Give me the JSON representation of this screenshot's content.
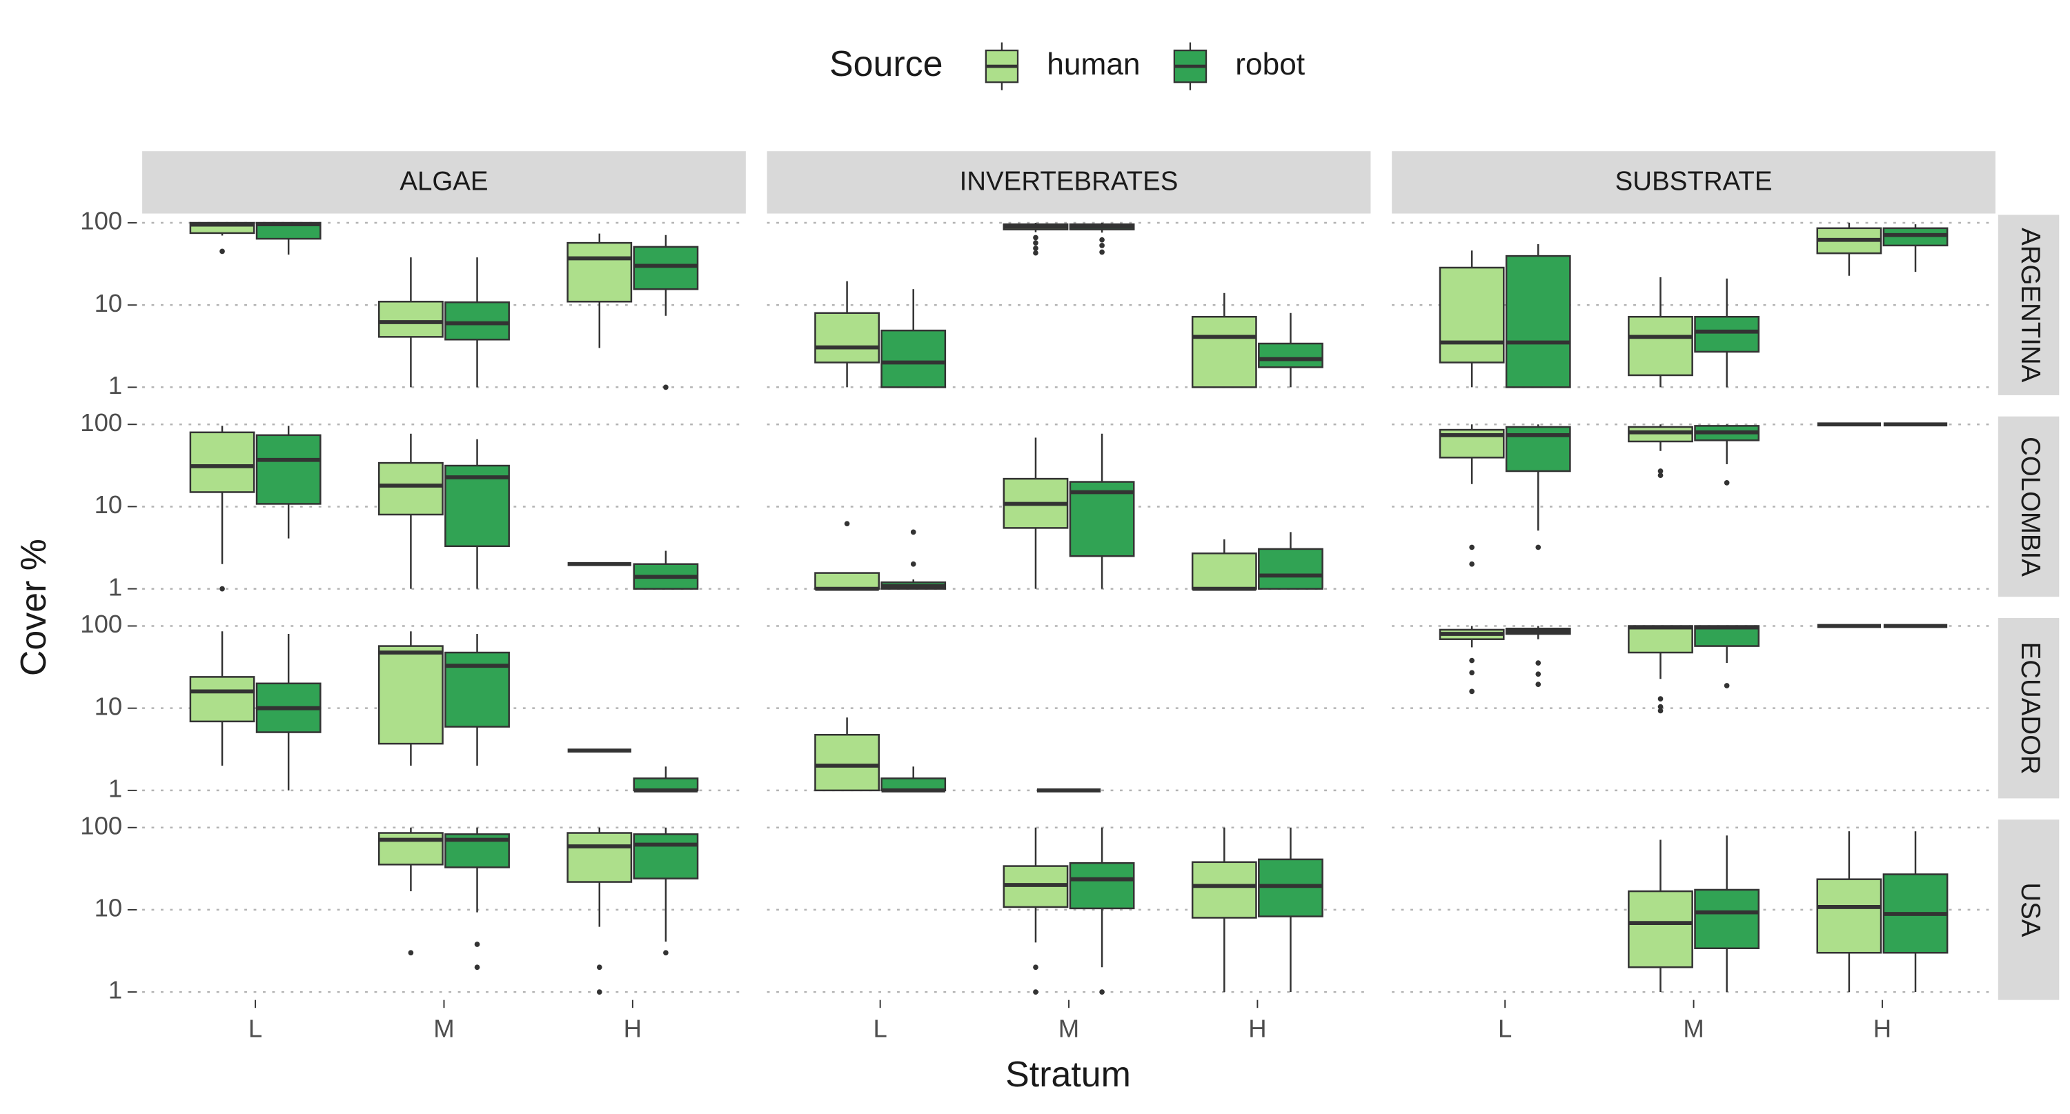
{
  "chart_data": {
    "type": "box",
    "legend_title": "Source",
    "x_label": "Stratum",
    "y_label": "Cover %",
    "categories": [
      "L",
      "M",
      "H"
    ],
    "series": [
      {
        "name": "human",
        "color": "#addf8b"
      },
      {
        "name": "robot",
        "color": "#31a354"
      }
    ],
    "ylim": [
      0.8,
      125
    ],
    "yticks": [
      1,
      10,
      100
    ],
    "log_scale": true,
    "grid": true,
    "facet_columns": [
      "ALGAE",
      "INVERTEBRATES",
      "SUBSTRATE"
    ],
    "facet_rows": [
      {
        "label": "ARGENTINA",
        "panels": [
          [
            [
              {
                "low": 70,
                "q1": 75,
                "median": 95,
                "q3": 100,
                "high": 100,
                "outliers": [
                  45
                ]
              },
              {
                "low": 1,
                "q1": 4.1,
                "median": 6.2,
                "q3": 11,
                "high": 38
              },
              {
                "low": 3,
                "q1": 11,
                "median": 37,
                "q3": 57,
                "high": 74
              }
            ],
            [
              {
                "low": 41,
                "q1": 64,
                "median": 96,
                "q3": 100,
                "high": 100
              },
              {
                "low": 1,
                "q1": 3.8,
                "median": 6,
                "q3": 10.8,
                "high": 38
              },
              {
                "low": 7.4,
                "q1": 15.6,
                "median": 30,
                "q3": 51,
                "high": 71,
                "outliers": [
                  1
                ]
              }
            ]
          ],
          [
            [
              {
                "low": 1,
                "q1": 2,
                "median": 3.05,
                "q3": 8,
                "high": 19.5
              },
              {
                "low": 77,
                "q1": 83,
                "median": 90,
                "q3": 96,
                "high": 100,
                "outliers": [
                  66,
                  57,
                  49,
                  43
                ]
              },
              {
                "low": 1,
                "q1": 1,
                "median": 4.1,
                "q3": 7.2,
                "high": 14
              }
            ],
            [
              {
                "low": 1,
                "q1": 1,
                "median": 2,
                "q3": 4.9,
                "high": 15.6
              },
              {
                "low": 76,
                "q1": 83,
                "median": 90,
                "q3": 96,
                "high": 100,
                "outliers": [
                  62,
                  53,
                  44
                ]
              },
              {
                "low": 1,
                "q1": 1.75,
                "median": 2.2,
                "q3": 3.4,
                "high": 8
              }
            ]
          ],
          [
            [
              {
                "low": 1,
                "q1": 2,
                "median": 3.5,
                "q3": 28.5,
                "high": 46
              },
              {
                "low": 1,
                "q1": 1.4,
                "median": 4.1,
                "q3": 7.2,
                "high": 21.8
              },
              {
                "low": 22.7,
                "q1": 42.6,
                "median": 62,
                "q3": 86,
                "high": 100
              }
            ],
            [
              {
                "low": 1,
                "q1": 1,
                "median": 3.5,
                "q3": 39.5,
                "high": 55
              },
              {
                "low": 1,
                "q1": 2.7,
                "median": 4.75,
                "q3": 7.2,
                "high": 21
              },
              {
                "low": 25.3,
                "q1": 53,
                "median": 71,
                "q3": 86,
                "high": 96
              }
            ]
          ]
        ]
      },
      {
        "label": "COLOMBIA",
        "panels": [
          [
            [
              {
                "low": 2,
                "q1": 15,
                "median": 31,
                "q3": 80,
                "high": 96,
                "outliers": [
                  1
                ]
              },
              {
                "low": 1,
                "q1": 8,
                "median": 18,
                "q3": 34,
                "high": 77
              },
              {
                "low": 2,
                "q1": 2,
                "median": 2,
                "q3": 2,
                "high": 2
              }
            ],
            [
              {
                "low": 4.1,
                "q1": 10.8,
                "median": 37,
                "q3": 74,
                "high": 96
              },
              {
                "low": 1,
                "q1": 3.3,
                "median": 22.7,
                "q3": 31.5,
                "high": 66
              },
              {
                "low": 1,
                "q1": 1,
                "median": 1.4,
                "q3": 2,
                "high": 2.9
              }
            ]
          ],
          [
            [
              {
                "low": 1,
                "q1": 1,
                "median": 1,
                "q3": 1.56,
                "high": 1.56,
                "outliers": [
                  6.2
                ]
              },
              {
                "low": 1,
                "q1": 5.5,
                "median": 10.8,
                "q3": 21.8,
                "high": 69
              },
              {
                "low": 1,
                "q1": 1,
                "median": 1,
                "q3": 2.7,
                "high": 4
              }
            ],
            [
              {
                "low": 1,
                "q1": 1,
                "median": 1.08,
                "q3": 1.2,
                "high": 1.3,
                "outliers": [
                  2,
                  4.9
                ]
              },
              {
                "low": 1,
                "q1": 2.5,
                "median": 15,
                "q3": 20,
                "high": 77
              },
              {
                "low": 1,
                "q1": 1,
                "median": 1.45,
                "q3": 3.05,
                "high": 4.9
              }
            ]
          ],
          [
            [
              {
                "low": 18.8,
                "q1": 39.5,
                "median": 74,
                "q3": 86,
                "high": 100,
                "outliers": [
                  3.2,
                  2
                ]
              },
              {
                "low": 47.5,
                "q1": 62,
                "median": 80,
                "q3": 93,
                "high": 100,
                "outliers": [
                  27,
                  24
                ]
              },
              {
                "low": 96,
                "q1": 100,
                "median": 100,
                "q3": 100,
                "high": 100
              }
            ],
            [
              {
                "low": 5.1,
                "q1": 27,
                "median": 74,
                "q3": 93,
                "high": 100,
                "outliers": [
                  3.2
                ]
              },
              {
                "low": 32.8,
                "q1": 64,
                "median": 80,
                "q3": 96,
                "high": 100,
                "outliers": [
                  19.5
                ]
              },
              {
                "low": 96,
                "q1": 100,
                "median": 100,
                "q3": 100,
                "high": 100
              }
            ]
          ]
        ]
      },
      {
        "label": "ECUADOR",
        "panels": [
          [
            [
              {
                "low": 2,
                "q1": 6.9,
                "median": 16,
                "q3": 24,
                "high": 86
              },
              {
                "low": 2,
                "q1": 3.7,
                "median": 47.5,
                "q3": 57,
                "high": 86
              },
              {
                "low": 3.05,
                "q1": 3.05,
                "median": 3.05,
                "q3": 3.05,
                "high": 3.05
              }
            ],
            [
              {
                "low": 1,
                "q1": 5.1,
                "median": 10,
                "q3": 20,
                "high": 80
              },
              {
                "low": 2,
                "q1": 5.95,
                "median": 32.8,
                "q3": 47.5,
                "high": 80
              },
              {
                "low": 1,
                "q1": 1,
                "median": 1,
                "q3": 1.4,
                "high": 1.95
              }
            ]
          ],
          [
            [
              {
                "low": 1,
                "q1": 1,
                "median": 2,
                "q3": 4.75,
                "high": 7.7
              },
              {
                "low": 1,
                "q1": 1,
                "median": 1,
                "q3": 1,
                "high": 1
              },
              null
            ],
            [
              {
                "low": 1,
                "q1": 1,
                "median": 1,
                "q3": 1.4,
                "high": 1.95
              },
              null,
              null
            ]
          ],
          [
            [
              {
                "low": 55,
                "q1": 69,
                "median": 80,
                "q3": 90,
                "high": 100,
                "outliers": [
                  38,
                  27,
                  16
                ]
              },
              {
                "low": 22.7,
                "q1": 47.5,
                "median": 96,
                "q3": 100,
                "high": 100,
                "outliers": [
                  13,
                  10.4,
                  9.3
                ]
              },
              {
                "low": 100,
                "q1": 100,
                "median": 100,
                "q3": 100,
                "high": 100
              }
            ],
            [
              {
                "low": 69,
                "q1": 80,
                "median": 86,
                "q3": 93,
                "high": 100,
                "outliers": [
                  35.5,
                  26,
                  19.5
                ]
              },
              {
                "low": 35.5,
                "q1": 57,
                "median": 96,
                "q3": 100,
                "high": 100,
                "outliers": [
                  18.8
                ]
              },
              {
                "low": 100,
                "q1": 100,
                "median": 100,
                "q3": 100,
                "high": 100
              }
            ]
          ]
        ]
      },
      {
        "label": "USA",
        "panels": [
          [
            [
              null,
              {
                "low": 16.8,
                "q1": 35.5,
                "median": 71,
                "q3": 86,
                "high": 100,
                "outliers": [
                  3
                ]
              },
              {
                "low": 6.2,
                "q1": 21.8,
                "median": 59,
                "q3": 86,
                "high": 100,
                "outliers": [
                  2,
                  1
                ]
              }
            ],
            [
              null,
              {
                "low": 9.3,
                "q1": 32.8,
                "median": 71,
                "q3": 83,
                "high": 100,
                "outliers": [
                  3.8,
                  2
                ]
              },
              {
                "low": 4.1,
                "q1": 24,
                "median": 62,
                "q3": 83,
                "high": 100,
                "outliers": [
                  3
                ]
              }
            ]
          ],
          [
            [
              null,
              {
                "low": 4,
                "q1": 10.8,
                "median": 20,
                "q3": 34,
                "high": 100,
                "outliers": [
                  2,
                  1
                ]
              },
              {
                "low": 1,
                "q1": 8,
                "median": 19.5,
                "q3": 38,
                "high": 100
              }
            ],
            [
              null,
              {
                "low": 2,
                "q1": 10.4,
                "median": 23.5,
                "q3": 37,
                "high": 100,
                "outliers": [
                  1
                ]
              },
              {
                "low": 1,
                "q1": 8.3,
                "median": 19.5,
                "q3": 41,
                "high": 100
              }
            ]
          ],
          [
            [
              null,
              {
                "low": 1,
                "q1": 2,
                "median": 6.9,
                "q3": 16.8,
                "high": 71
              },
              {
                "low": 1,
                "q1": 3,
                "median": 10.8,
                "q3": 23.5,
                "high": 90
              }
            ],
            [
              null,
              {
                "low": 1,
                "q1": 3.4,
                "median": 9.3,
                "q3": 17.5,
                "high": 80
              },
              {
                "low": 1,
                "q1": 3,
                "median": 8.9,
                "q3": 27,
                "high": 90
              }
            ]
          ]
        ]
      }
    ]
  }
}
